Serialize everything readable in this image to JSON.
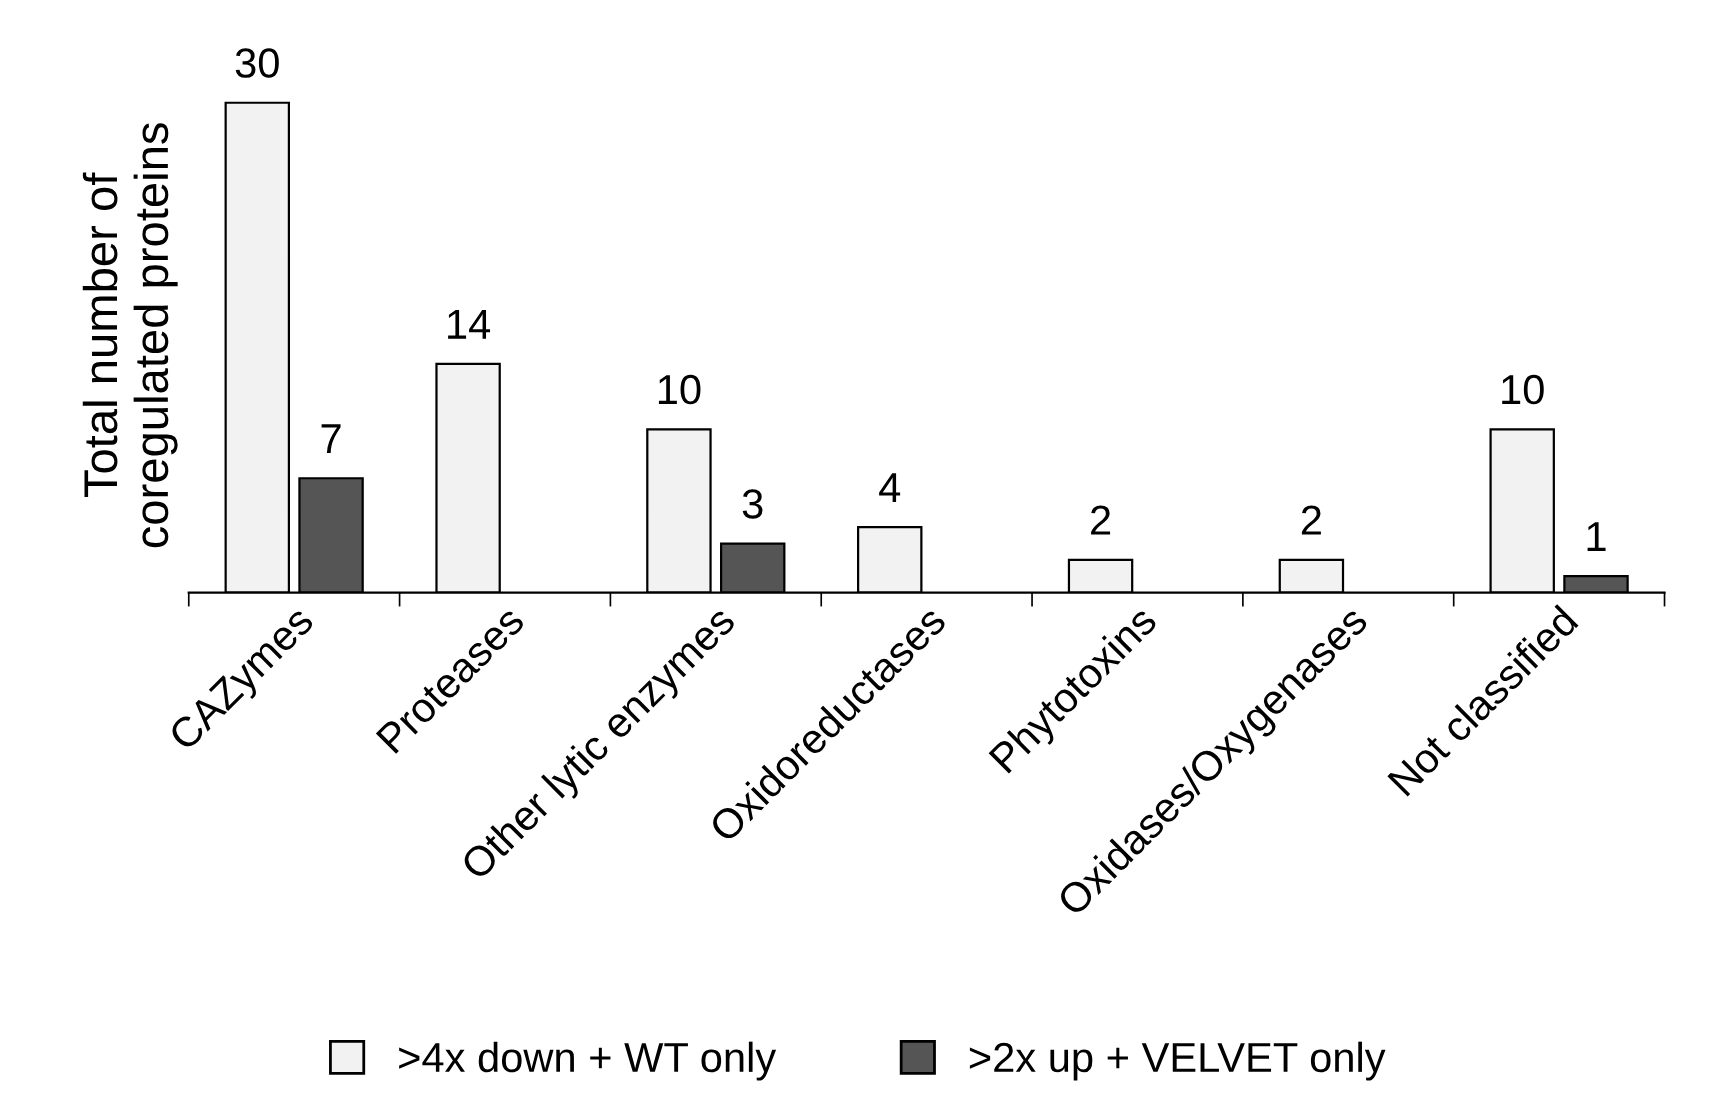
{
  "chart_data": {
    "type": "bar",
    "ylabel": "Total number of\ncoregulated proteins",
    "categories": [
      "CAZymes",
      "Proteases",
      "Other lytic enzymes",
      "Oxidoreductases",
      "Phytotoxins",
      "Oxidases/Oxygenases",
      "Not classified"
    ],
    "series": [
      {
        "name": ">4x down + WT only",
        "color": "#f2f2f2",
        "values": [
          30,
          14,
          10,
          4,
          2,
          2,
          10
        ]
      },
      {
        "name": ">2x up + VELVET only",
        "color": "#555555",
        "values": [
          7,
          null,
          3,
          null,
          null,
          null,
          1
        ]
      }
    ],
    "data_labels": true,
    "legend": "bottom",
    "grid": false
  }
}
